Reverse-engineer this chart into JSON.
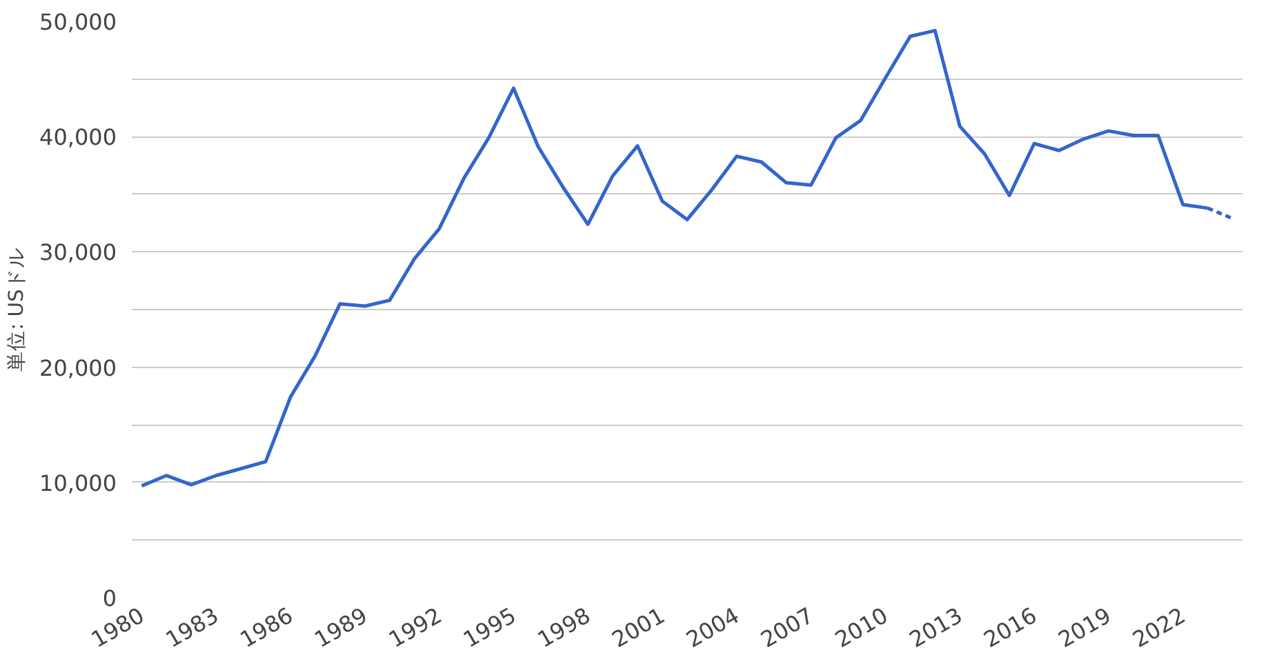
{
  "chart_data": {
    "type": "line",
    "ylabel": "単位: USドル",
    "x": [
      1980,
      1981,
      1982,
      1983,
      1984,
      1985,
      1986,
      1987,
      1988,
      1989,
      1990,
      1991,
      1992,
      1993,
      1994,
      1995,
      1996,
      1997,
      1998,
      1999,
      2000,
      2001,
      2002,
      2003,
      2004,
      2005,
      2006,
      2007,
      2008,
      2009,
      2010,
      2011,
      2012,
      2013,
      2014,
      2015,
      2016,
      2017,
      2018,
      2019,
      2020,
      2021,
      2022,
      2023
    ],
    "series": [
      {
        "color": "#3366cc",
        "line_style": "solid",
        "values": [
          9700,
          10600,
          9800,
          10600,
          11200,
          11800,
          17400,
          21000,
          25500,
          25300,
          25800,
          29400,
          32000,
          36400,
          39900,
          44200,
          39100,
          35600,
          32400,
          36600,
          39200,
          34400,
          32800,
          35400,
          38300,
          37800,
          36000,
          35800,
          39900,
          41400,
          45100,
          48700,
          49200,
          40900,
          38500,
          34900,
          39400,
          38800,
          39800,
          40500,
          40100,
          40100,
          34100,
          33800
        ]
      },
      {
        "color": "#3366cc",
        "line_style": "dashed",
        "x": [
          2023,
          2024
        ],
        "values": [
          33800,
          32900
        ]
      }
    ],
    "xlim": [
      1979.6,
      2024.4
    ],
    "xticks": [
      1980,
      1983,
      1986,
      1989,
      1992,
      1995,
      1998,
      2001,
      2004,
      2007,
      2010,
      2013,
      2016,
      2019,
      2022
    ],
    "ylim": [
      0,
      50000
    ],
    "yticks": [
      {
        "value": 0,
        "label": "0"
      },
      {
        "value": 5000,
        "label": null
      },
      {
        "value": 10000,
        "label": "10,000"
      },
      {
        "value": 15000,
        "label": null
      },
      {
        "value": 20000,
        "label": "20,000"
      },
      {
        "value": 25000,
        "label": null
      },
      {
        "value": 30000,
        "label": "30,000"
      },
      {
        "value": 35000,
        "label": null
      },
      {
        "value": 40000,
        "label": "40,000"
      },
      {
        "value": 45000,
        "label": null
      },
      {
        "value": 50000,
        "label": "50,000"
      }
    ],
    "grid": "y",
    "marker": "none"
  }
}
